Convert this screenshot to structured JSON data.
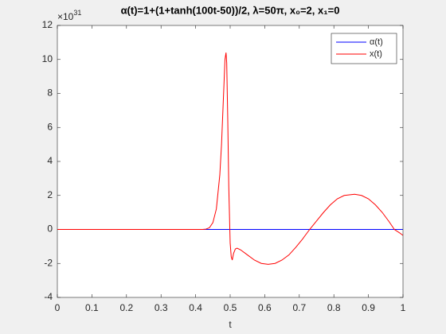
{
  "chart_data": {
    "type": "line",
    "title": "α(t)=1+(1+tanh(100t-50))/2, λ=50π, x₀=2, x₁=0",
    "x_label": "t",
    "y_multiplier": {
      "base": "×10",
      "exponent": "31"
    },
    "xlim": [
      0,
      1
    ],
    "xticks": [
      0,
      0.1,
      0.2,
      0.3,
      0.4,
      0.5,
      0.6,
      0.7,
      0.8,
      0.9,
      1
    ],
    "ylim": [
      -4,
      12
    ],
    "yticks": [
      -4,
      -2,
      0,
      2,
      4,
      6,
      8,
      10,
      12
    ],
    "legend": "top-right",
    "series": [
      {
        "name": "α(t)",
        "color": "#0000ff",
        "x": [
          0,
          1
        ],
        "values": [
          0,
          0
        ]
      },
      {
        "name": "x(t)",
        "color": "#ff0000",
        "x": [
          0,
          0.1,
          0.2,
          0.3,
          0.4,
          0.42,
          0.43,
          0.44,
          0.45,
          0.46,
          0.47,
          0.475,
          0.48,
          0.485,
          0.488,
          0.49,
          0.493,
          0.496,
          0.5,
          0.503,
          0.506,
          0.51,
          0.515,
          0.52,
          0.53,
          0.55,
          0.57,
          0.59,
          0.61,
          0.63,
          0.65,
          0.67,
          0.69,
          0.71,
          0.73,
          0.75,
          0.77,
          0.79,
          0.81,
          0.83,
          0.86,
          0.88,
          0.9,
          0.92,
          0.94,
          0.96,
          0.975,
          0.99,
          1
        ],
        "values": [
          0,
          0,
          0,
          0,
          0,
          0,
          0.02,
          0.1,
          0.4,
          1.2,
          3.2,
          5,
          7.5,
          10,
          10.4,
          9.8,
          6.5,
          2.5,
          -0.8,
          -1.6,
          -1.8,
          -1.4,
          -1.15,
          -1.1,
          -1.2,
          -1.5,
          -1.8,
          -2,
          -2.05,
          -2,
          -1.8,
          -1.5,
          -1.05,
          -0.55,
          0,
          0.5,
          1,
          1.45,
          1.8,
          2,
          2.07,
          2,
          1.8,
          1.45,
          1,
          0.45,
          0,
          -0.2,
          -0.35
        ]
      }
    ]
  }
}
